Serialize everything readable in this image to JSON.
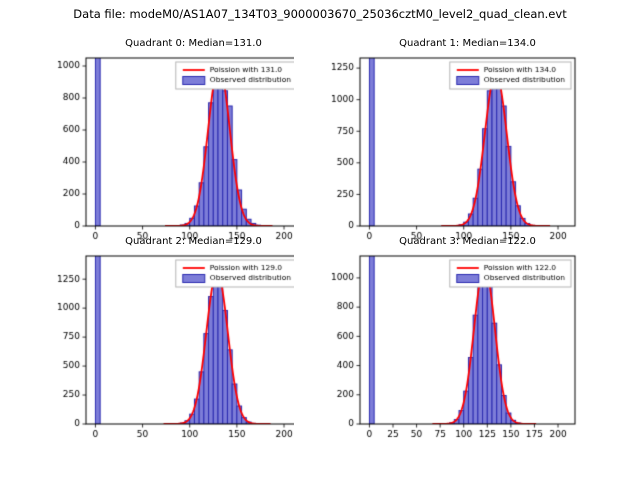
{
  "figure": {
    "title": "Data file: modeM0/AS1A07_134T03_9000003670_25036cztM0_level2_quad_clean.evt"
  },
  "colors": {
    "background": "#ffffff",
    "text": "#000000",
    "bar_fill": "#7d7dd8",
    "bar_edge": "#2a2ab0",
    "curve": "#ff0000",
    "legend_edge": "#b5b5b5"
  },
  "chart_data": [
    {
      "type": "bar",
      "title": "Quadrant 0: Median=131.0",
      "median": 131.0,
      "legend": {
        "curve": "Poission with 131.0",
        "bars": "Observed distribution"
      },
      "xlim": [
        -10,
        218
      ],
      "ylim": [
        0,
        1050
      ],
      "xticks": [
        0,
        50,
        100,
        150,
        200
      ],
      "yticks": [
        0,
        200,
        400,
        600,
        800,
        1000
      ],
      "bin_width": 5,
      "bin_starts": [
        0,
        85,
        90,
        95,
        100,
        105,
        110,
        115,
        120,
        125,
        130,
        135,
        140,
        145,
        150,
        155,
        160,
        165,
        170,
        175
      ],
      "counts": [
        1500,
        2,
        6,
        16,
        48,
        125,
        270,
        495,
        770,
        985,
        1005,
        845,
        750,
        415,
        225,
        105,
        42,
        16,
        5,
        2
      ],
      "fit": {
        "model": "poisson",
        "lambda": 131.0,
        "peak": 1000
      }
    },
    {
      "type": "bar",
      "title": "Quadrant 1: Median=134.0",
      "median": 134.0,
      "legend": {
        "curve": "Poission with 134.0",
        "bars": "Observed distribution"
      },
      "xlim": [
        -10,
        218
      ],
      "ylim": [
        0,
        1330
      ],
      "xticks": [
        0,
        50,
        100,
        150,
        200
      ],
      "yticks": [
        0,
        250,
        500,
        750,
        1000,
        1250
      ],
      "bin_width": 5,
      "bin_starts": [
        0,
        90,
        95,
        100,
        105,
        110,
        115,
        120,
        125,
        130,
        135,
        140,
        145,
        150,
        155,
        160,
        165,
        170,
        175
      ],
      "counts": [
        1800,
        3,
        10,
        30,
        95,
        220,
        450,
        770,
        1070,
        1200,
        1150,
        950,
        630,
        350,
        160,
        60,
        20,
        5,
        2
      ],
      "fit": {
        "model": "poisson",
        "lambda": 134.0,
        "peak": 1210
      }
    },
    {
      "type": "bar",
      "title": "Quadrant 2: Median=129.0",
      "median": 129.0,
      "legend": {
        "curve": "Poission with 129.0",
        "bars": "Observed distribution"
      },
      "xlim": [
        -10,
        218
      ],
      "ylim": [
        0,
        1450
      ],
      "xticks": [
        0,
        50,
        100,
        150,
        200
      ],
      "yticks": [
        0,
        250,
        500,
        750,
        1000,
        1250
      ],
      "bin_width": 5,
      "bin_starts": [
        0,
        80,
        85,
        90,
        95,
        100,
        105,
        110,
        115,
        120,
        125,
        130,
        135,
        140,
        145,
        150,
        155,
        160,
        165,
        170
      ],
      "counts": [
        2000,
        2,
        4,
        8,
        28,
        85,
        215,
        450,
        780,
        1100,
        1310,
        1240,
        980,
        640,
        345,
        155,
        55,
        17,
        5,
        2
      ],
      "fit": {
        "model": "poisson",
        "lambda": 129.0,
        "peak": 1310
      }
    },
    {
      "type": "bar",
      "title": "Quadrant 3: Median=122.0",
      "median": 122.0,
      "legend": {
        "curve": "Poission with 122.0",
        "bars": "Observed distribution"
      },
      "xlim": [
        -10,
        218
      ],
      "ylim": [
        0,
        1150
      ],
      "xticks": [
        0,
        25,
        50,
        75,
        100,
        125,
        150,
        175,
        200
      ],
      "yticks": [
        0,
        200,
        400,
        600,
        800,
        1000
      ],
      "bin_width": 5,
      "bin_starts": [
        0,
        85,
        90,
        95,
        100,
        105,
        110,
        115,
        120,
        125,
        130,
        135,
        140,
        145,
        150,
        155,
        160
      ],
      "counts": [
        1600,
        8,
        30,
        92,
        225,
        455,
        745,
        995,
        1080,
        955,
        690,
        405,
        195,
        75,
        25,
        7,
        2
      ],
      "fit": {
        "model": "poisson",
        "lambda": 122.0,
        "peak": 1080
      }
    }
  ]
}
